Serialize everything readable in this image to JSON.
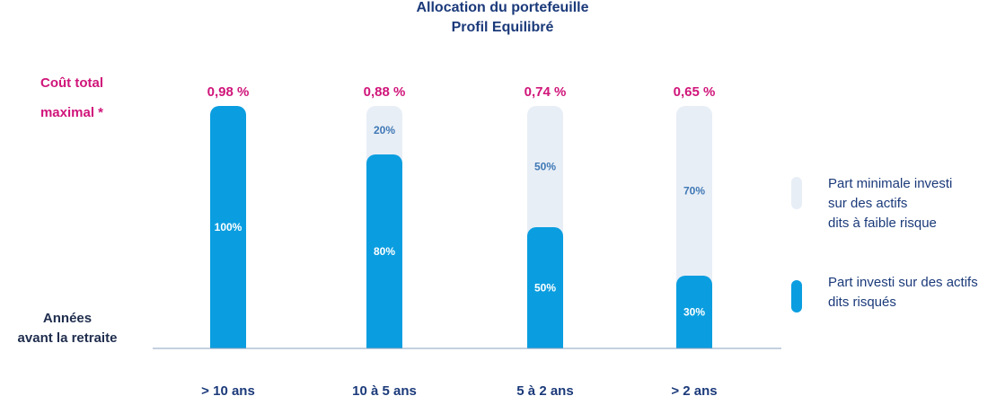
{
  "title": {
    "line1": "Allocation du portefeuille",
    "line2": "Profil Equilibré"
  },
  "cost_label": {
    "line1": "Coût total",
    "line2": "maximal *"
  },
  "years_label": {
    "line1": "Années",
    "line2": "avant la retraite"
  },
  "legend": {
    "low_risk": "Part minimale investi sur des actifs dits à faible risque",
    "low_risk_lines": [
      "Part minimale investi",
      "sur des actifs",
      "dits à faible risque"
    ],
    "risky": "Part investi sur des actifs dits risqués",
    "risky_lines": [
      "Part investi sur des actifs",
      "dits risqués"
    ]
  },
  "colors": {
    "risky": "#0a9ee0",
    "low_risk": "#e8eef6",
    "cost": "#d0157a",
    "label_dark": "#1b3a7a",
    "axis": "#8aa0bf"
  },
  "chart_data": {
    "type": "bar",
    "stacked": true,
    "title": "Allocation du portefeuille — Profil Equilibré",
    "categories": [
      "> 10 ans",
      "10 à 5 ans",
      "5 à 2 ans",
      "> 2 ans"
    ],
    "series": [
      {
        "name": "Part investi sur des actifs dits risqués",
        "values": [
          100,
          80,
          50,
          30
        ]
      },
      {
        "name": "Part minimale investi sur des actifs dits à faible risque",
        "values": [
          0,
          20,
          50,
          70
        ]
      }
    ],
    "segment_labels": {
      "risky": [
        "100%",
        "80%",
        "50%",
        "30%"
      ],
      "low_risk": [
        "",
        "20%",
        "50%",
        "70%"
      ]
    },
    "cost_labels": [
      "0,98 %",
      "0,88 %",
      "0,74 %",
      "0,65 %"
    ],
    "ylim": [
      0,
      100
    ],
    "grid": false,
    "legend_position": "right"
  }
}
